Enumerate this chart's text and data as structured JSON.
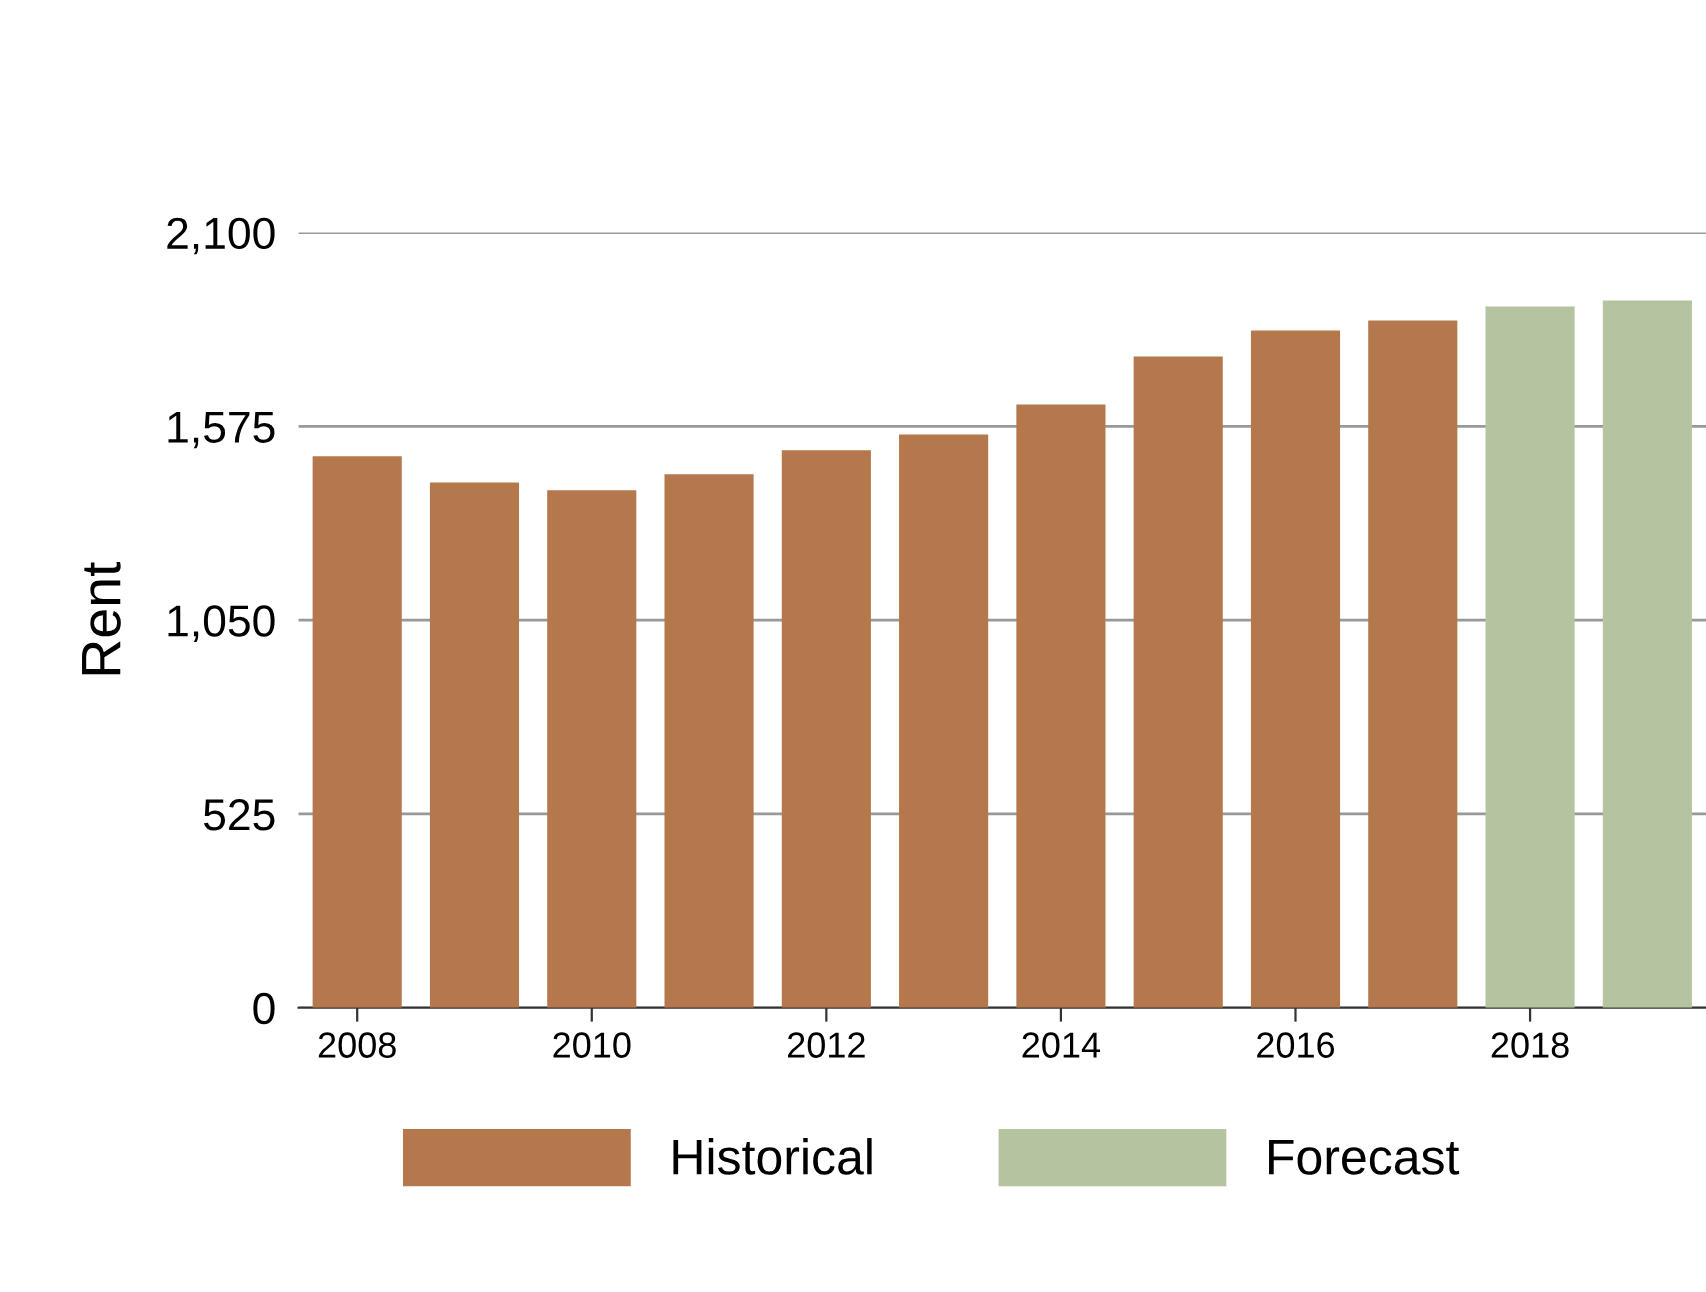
{
  "chart_data": {
    "type": "bar",
    "ylabel": "Rent",
    "categories": [
      "2008",
      null,
      "2010",
      null,
      "2012",
      null,
      "2014",
      null,
      "2016",
      null,
      "2018",
      null
    ],
    "series": [
      {
        "name": "Historical",
        "color": "#b5784c",
        "values": [
          1494,
          1423,
          1402,
          1445,
          1510,
          1553,
          1634,
          1764,
          1835,
          1862,
          null,
          null
        ]
      },
      {
        "name": "Forecast",
        "color": "#b5c4a0",
        "values": [
          null,
          null,
          null,
          null,
          null,
          null,
          null,
          null,
          null,
          null,
          1900,
          1916
        ]
      }
    ],
    "ylim": [
      0,
      2100
    ],
    "yticks": [
      0,
      525,
      {
        "value": 1050,
        "label": "1,050"
      },
      {
        "value": 1575,
        "label": "1,575"
      },
      {
        "value": 2100,
        "label": "2,100"
      }
    ],
    "grid": "y",
    "legend": "bottom"
  }
}
